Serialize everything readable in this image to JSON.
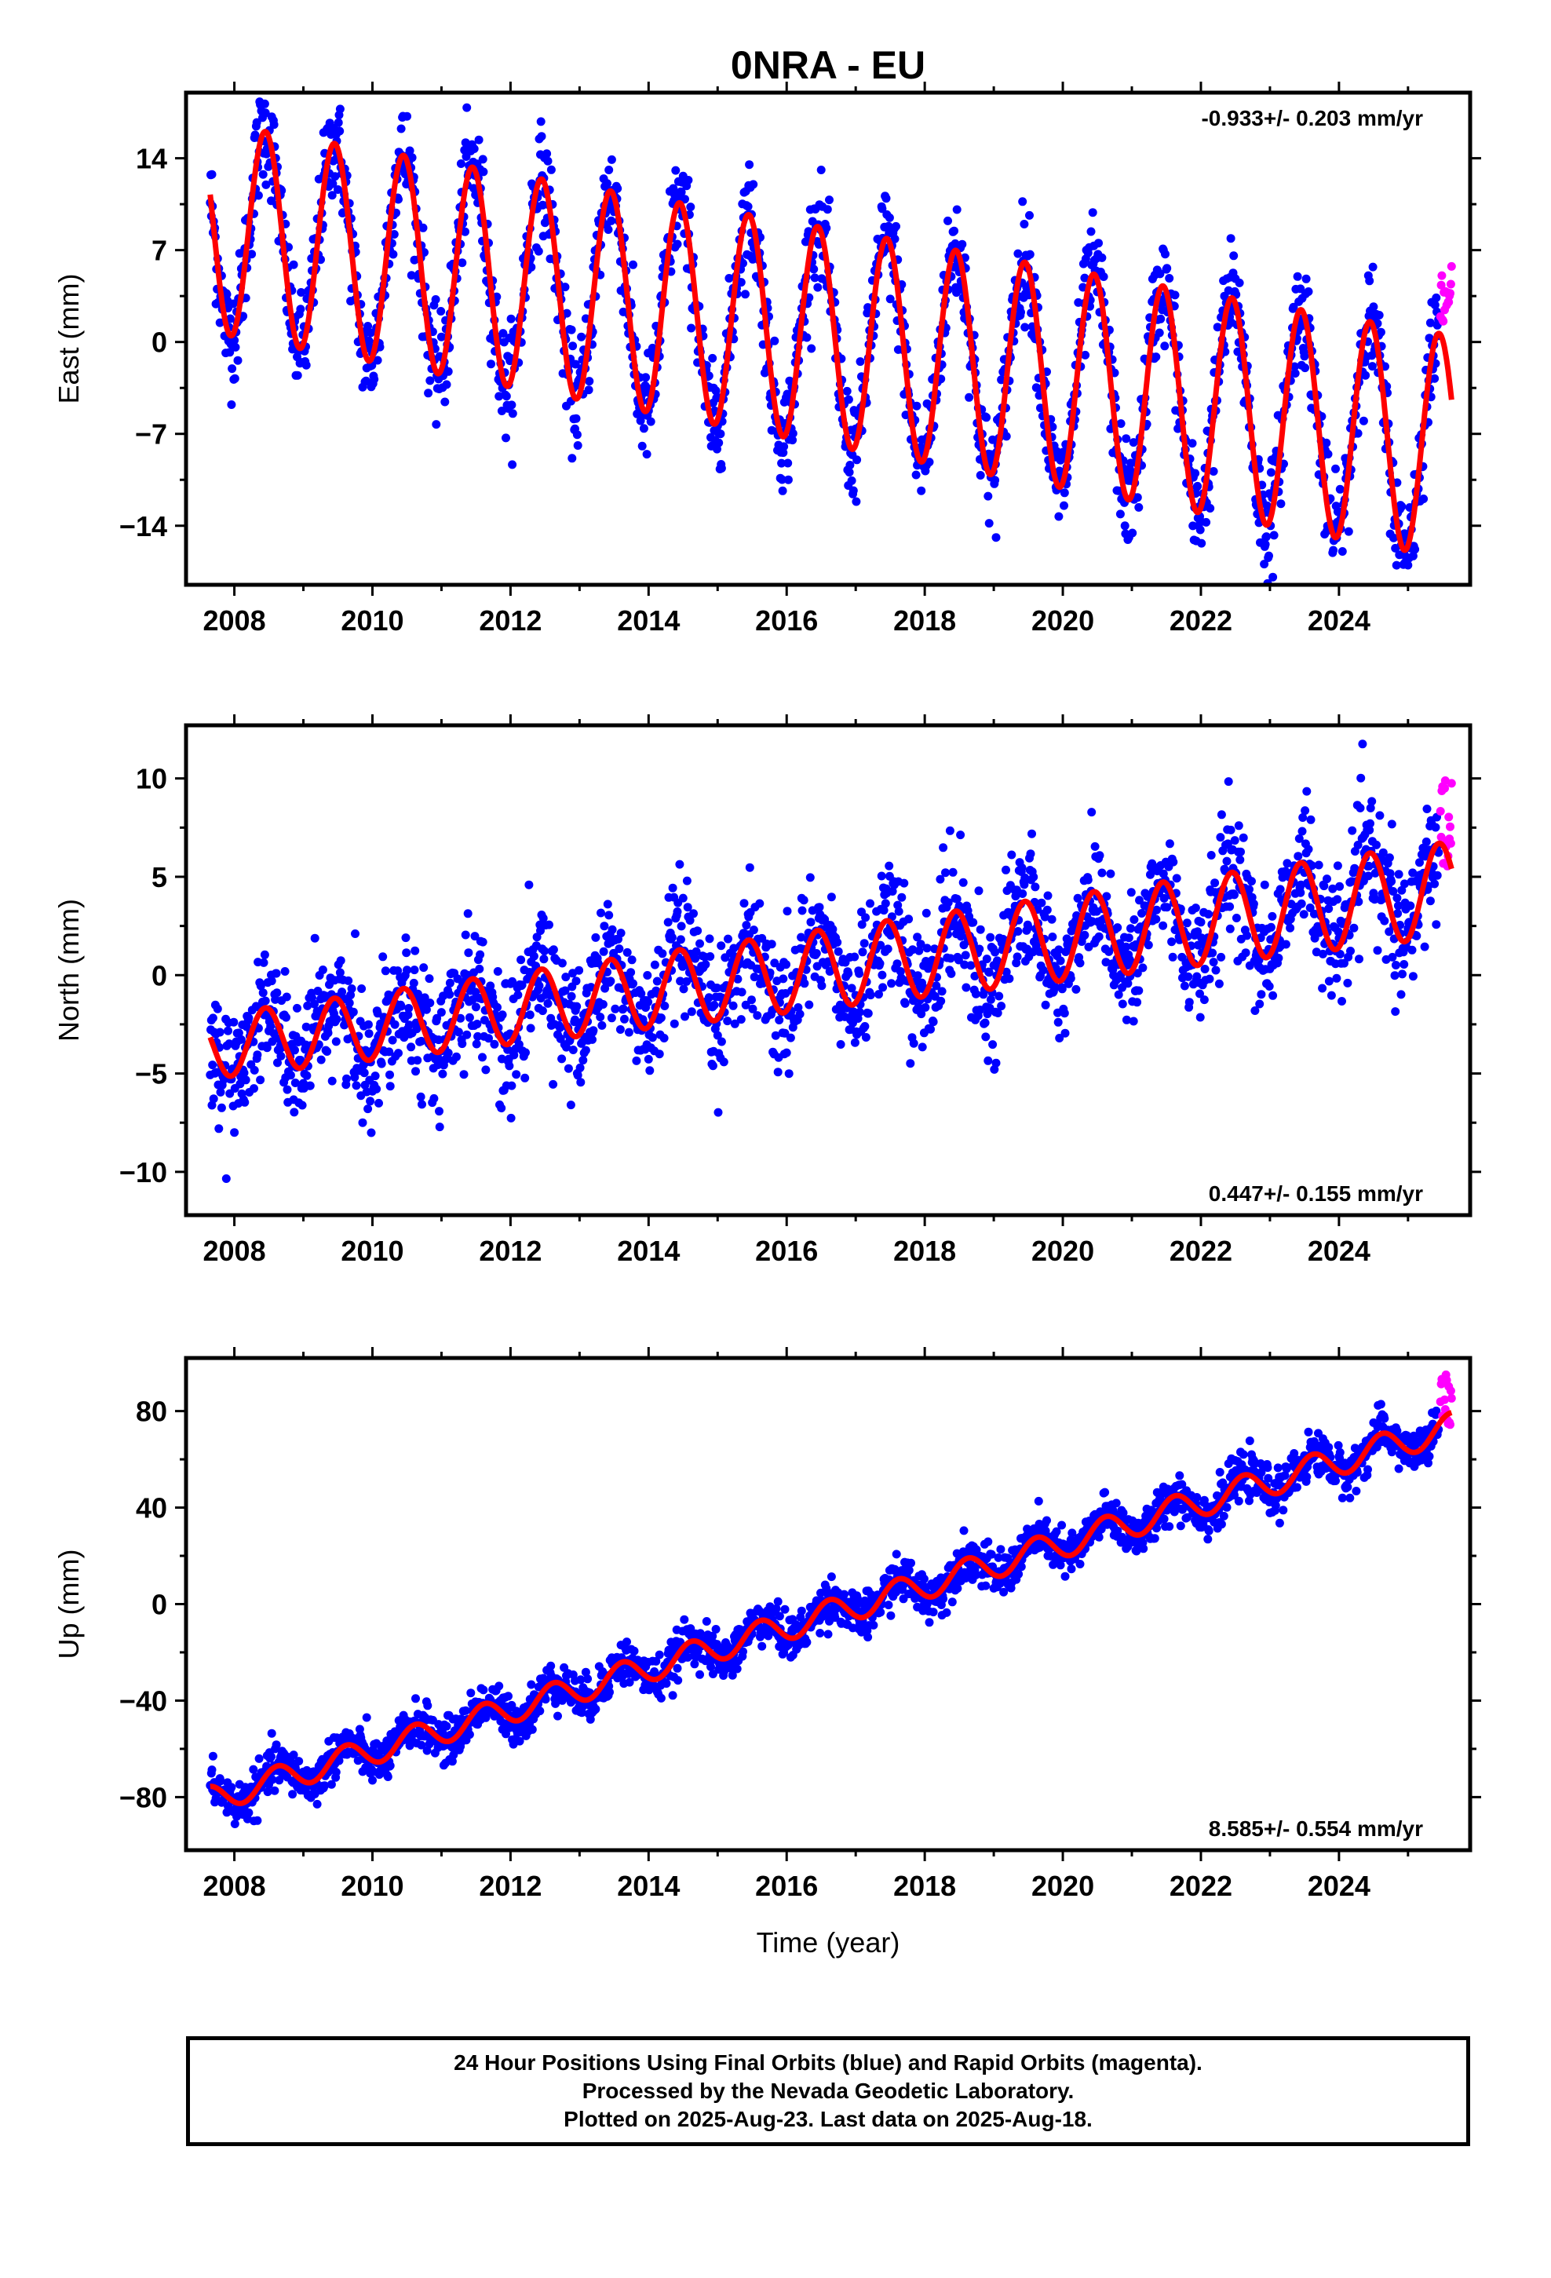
{
  "colors": {
    "final": "#0000ff",
    "rapid": "#ff00ff",
    "model": "#ff0000",
    "frame": "#000000"
  },
  "chart_data": [
    {
      "type": "scatter",
      "title": "0NRA - EU",
      "ylabel": "East (mm)",
      "xlabel": "",
      "xlim": [
        2007.3,
        2025.9
      ],
      "ylim": [
        -18.5,
        19
      ],
      "xticks": [
        "2008",
        "2010",
        "2012",
        "2014",
        "2016",
        "2018",
        "2020",
        "2022",
        "2024"
      ],
      "yticks": [
        "14",
        "7",
        "0",
        "-7",
        "-14"
      ],
      "ytick_values": [
        14,
        7,
        0,
        -7,
        -14
      ],
      "rate_text": "-0.933+/- 0.203 mm/yr",
      "rate_position": "top-right",
      "grid": false,
      "series": [
        {
          "name": "Final Orbits",
          "style": "points",
          "color": "blue",
          "x_range": [
            2007.65,
            2025.45
          ],
          "trend": {
            "ref_year": 2016.5,
            "intercept": 0.5,
            "slope": -0.933
          },
          "annual": {
            "amplitude_start": 8.0,
            "amplitude_end": 8.5,
            "peak_phase": 0.45
          },
          "scatter_sd": 2.0
        },
        {
          "name": "Rapid Orbits",
          "style": "points",
          "color": "magenta",
          "x_range": [
            2025.47,
            2025.63
          ],
          "values_range": [
            1.5,
            6.0
          ]
        },
        {
          "name": "Model",
          "style": "line",
          "color": "red",
          "x_range": [
            2007.65,
            2025.63
          ]
        }
      ]
    },
    {
      "type": "scatter",
      "title": "",
      "ylabel": "North (mm)",
      "xlabel": "",
      "xlim": [
        2007.3,
        2025.9
      ],
      "ylim": [
        -12.2,
        12.7
      ],
      "xticks": [
        "2008",
        "2010",
        "2012",
        "2014",
        "2016",
        "2018",
        "2020",
        "2022",
        "2024"
      ],
      "yticks": [
        "10",
        "5",
        "0",
        "-5",
        "-10"
      ],
      "ytick_values": [
        10,
        5,
        0,
        -5,
        -10
      ],
      "rate_text": "0.447+/- 0.155 mm/yr",
      "rate_position": "bottom-right",
      "grid": false,
      "series": [
        {
          "name": "Final Orbits",
          "style": "points",
          "color": "blue",
          "x_range": [
            2007.65,
            2025.45
          ],
          "trend": {
            "ref_year": 2016.5,
            "intercept": 0.3,
            "slope": 0.447
          },
          "annual": {
            "amplitude_start": 1.6,
            "amplitude_end": 2.4,
            "peak_phase": 0.45
          },
          "scatter_sd": 1.6
        },
        {
          "name": "Rapid Orbits",
          "style": "points",
          "color": "magenta",
          "x_range": [
            2025.47,
            2025.63
          ],
          "values_range": [
            5.0,
            10.0
          ]
        },
        {
          "name": "Model",
          "style": "line",
          "color": "red",
          "x_range": [
            2007.65,
            2025.63
          ]
        }
      ]
    },
    {
      "type": "scatter",
      "title": "",
      "ylabel": "Up (mm)",
      "xlabel": "Time (year)",
      "xlim": [
        2007.3,
        2025.9
      ],
      "ylim": [
        -102,
        102
      ],
      "xticks": [
        "2008",
        "2010",
        "2012",
        "2014",
        "2016",
        "2018",
        "2020",
        "2022",
        "2024"
      ],
      "yticks": [
        "80",
        "40",
        "0",
        "-40",
        "-80"
      ],
      "ytick_values": [
        80,
        40,
        0,
        -40,
        -80
      ],
      "rate_text": "8.585+/- 0.554 mm/yr",
      "rate_position": "bottom-right",
      "grid": false,
      "series": [
        {
          "name": "Final Orbits",
          "style": "points",
          "color": "blue",
          "x_range": [
            2007.65,
            2025.45
          ],
          "trend": {
            "ref_year": 2016.5,
            "intercept": -5.0,
            "slope": 8.585
          },
          "annual": {
            "amplitude_start": 5.5,
            "amplitude_end": 6.0,
            "peak_phase": 0.62
          },
          "scatter_sd": 4.5
        },
        {
          "name": "Rapid Orbits",
          "style": "points",
          "color": "magenta",
          "x_range": [
            2025.47,
            2025.63
          ],
          "values_range": [
            74,
            98
          ]
        },
        {
          "name": "Model",
          "style": "line",
          "color": "red",
          "x_range": [
            2007.65,
            2025.63
          ]
        }
      ]
    }
  ],
  "footer": {
    "line1": "24 Hour Positions Using Final Orbits (blue) and Rapid Orbits (magenta).",
    "line2": "Processed by the Nevada Geodetic Laboratory.",
    "line3": "Plotted on 2025-Aug-23. Last data on 2025-Aug-18."
  }
}
